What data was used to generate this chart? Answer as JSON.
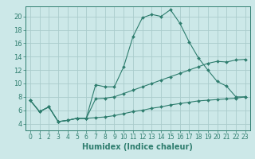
{
  "xlabel": "Humidex (Indice chaleur)",
  "bg_color": "#cce8e8",
  "grid_color": "#aacccc",
  "line_color": "#2e7d6e",
  "xlim": [
    -0.5,
    23.5
  ],
  "ylim": [
    3.0,
    21.5
  ],
  "yticks": [
    4,
    6,
    8,
    10,
    12,
    14,
    16,
    18,
    20
  ],
  "xticks": [
    0,
    1,
    2,
    3,
    4,
    5,
    6,
    7,
    8,
    9,
    10,
    11,
    12,
    13,
    14,
    15,
    16,
    17,
    18,
    19,
    20,
    21,
    22,
    23
  ],
  "line1_y": [
    7.5,
    5.8,
    6.5,
    4.3,
    4.5,
    4.8,
    4.8,
    9.8,
    9.5,
    9.5,
    12.5,
    17.0,
    19.8,
    20.3,
    20.0,
    21.0,
    19.0,
    16.2,
    13.8,
    12.0,
    10.3,
    9.6,
    8.0,
    8.0
  ],
  "line2_y": [
    7.5,
    5.8,
    6.5,
    4.3,
    4.5,
    4.8,
    4.8,
    7.7,
    7.8,
    8.0,
    8.5,
    9.0,
    9.5,
    10.0,
    10.5,
    11.0,
    11.5,
    12.0,
    12.5,
    13.0,
    13.3,
    13.2,
    13.5,
    13.6
  ],
  "line3_y": [
    7.5,
    5.8,
    6.5,
    4.3,
    4.5,
    4.8,
    4.8,
    4.9,
    5.0,
    5.2,
    5.5,
    5.8,
    6.0,
    6.3,
    6.5,
    6.8,
    7.0,
    7.2,
    7.4,
    7.5,
    7.6,
    7.7,
    7.8,
    8.0
  ],
  "xlabel_fontsize": 7,
  "tick_fontsize": 5.5,
  "lw": 0.8,
  "ms": 2.0
}
